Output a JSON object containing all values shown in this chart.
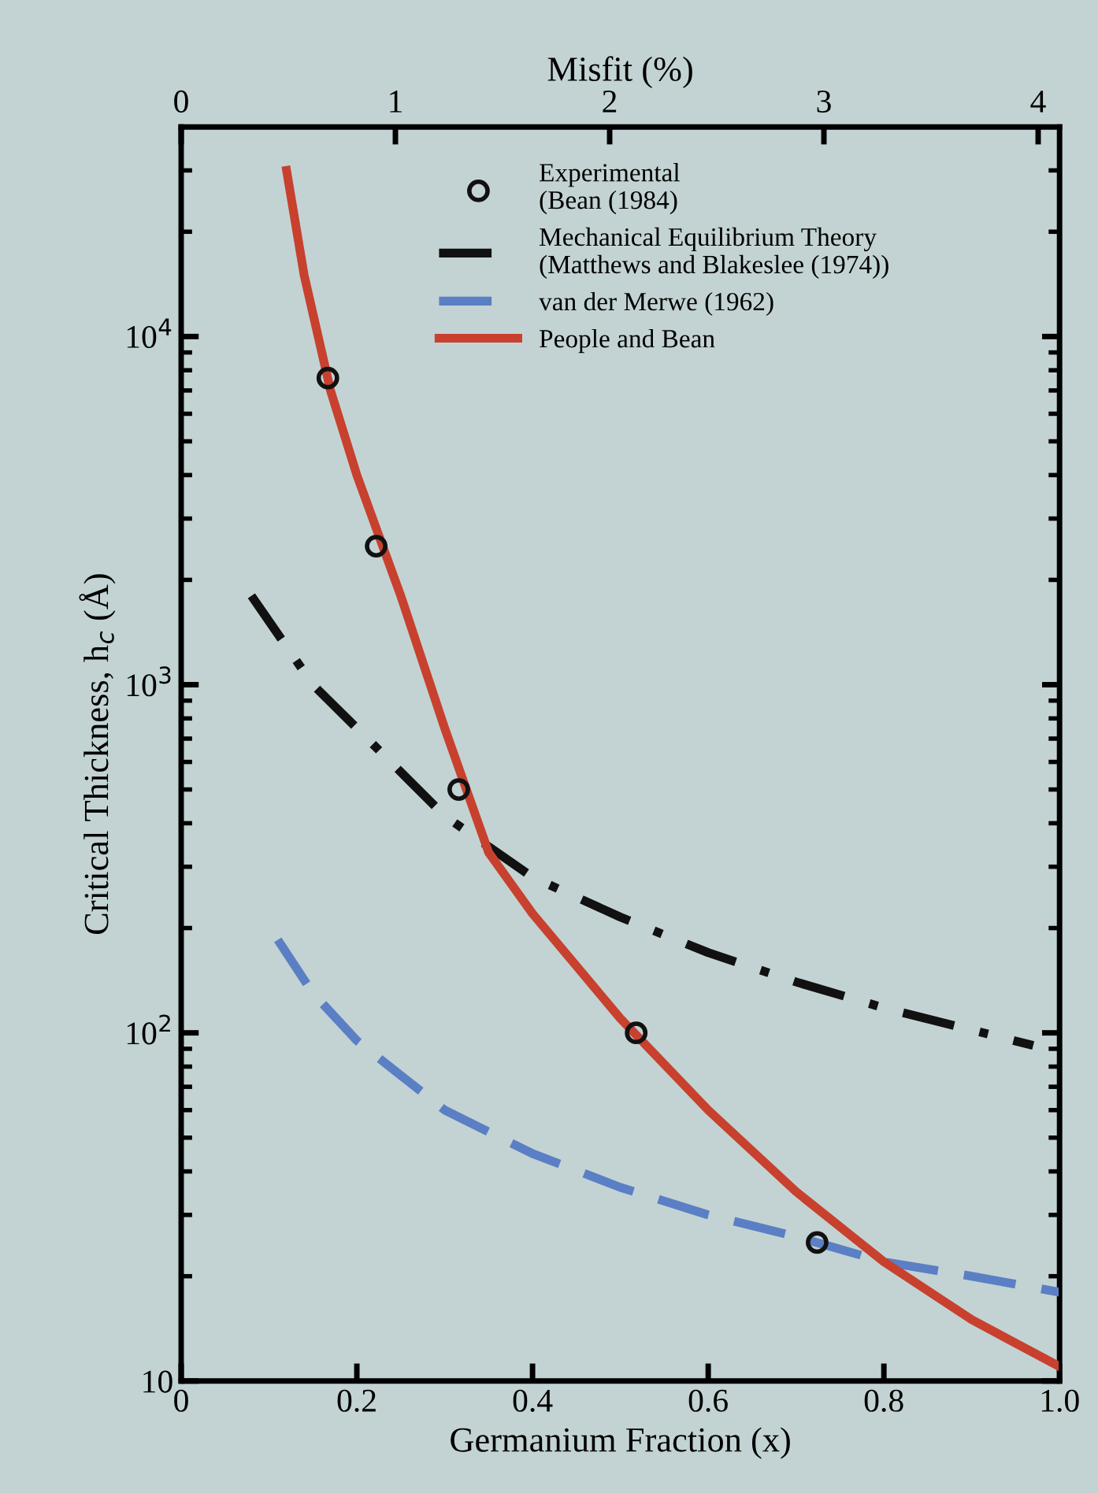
{
  "chart_data": {
    "type": "line",
    "xlabel": "Germanium Fraction (x)",
    "ylabel": "Critical Thickness, h$_{c}$ (Å)",
    "x2label": "Misfit (%)",
    "xlim": [
      0,
      1.0
    ],
    "xticks": [
      0,
      0.2,
      0.4,
      0.6,
      0.8,
      {
        "value": 1.0,
        "label": "1.0"
      }
    ],
    "x2lim": [
      0,
      4.1
    ],
    "x2ticks": [
      0,
      1,
      2,
      3,
      4
    ],
    "ylim": [
      10,
      40000
    ],
    "log": "y",
    "yticks": [
      10,
      {
        "value": 100,
        "label": "10$^{2}$"
      },
      {
        "value": 1000,
        "label": "10$^{3}$"
      },
      {
        "value": 10000,
        "label": "10$^{4}$"
      }
    ],
    "grid": false,
    "legend": "top",
    "series": [
      {
        "name": "Experimental\n(Bean (1984)",
        "type": "scatter",
        "marker": "circle",
        "color": "#111111",
        "x": [
          0.167,
          0.222,
          0.316,
          0.518,
          0.724
        ],
        "values": [
          7600,
          2500,
          500,
          100,
          25
        ]
      },
      {
        "name": "Mechanical Equilibrium Theory\n(Matthews and Blakeslee (1974))",
        "line_style": "dashdot",
        "color": "#111111",
        "x": [
          0.08,
          0.15,
          0.2,
          0.3,
          0.4,
          0.5,
          0.6,
          0.7,
          0.8,
          0.97
        ],
        "values": [
          1800,
          1000,
          750,
          420,
          280,
          215,
          170,
          140,
          118,
          92
        ]
      },
      {
        "name": "van der Merwe (1962)",
        "line_style": "dashed",
        "color": "#5b7fc4",
        "x": [
          0.11,
          0.15,
          0.2,
          0.3,
          0.4,
          0.5,
          0.6,
          0.7,
          0.8,
          0.9,
          1.0
        ],
        "values": [
          185,
          130,
          95,
          60,
          45,
          36,
          30,
          26,
          22,
          20,
          18
        ]
      },
      {
        "name": "People and Bean",
        "line_style": "solid",
        "color": "#c8412e",
        "x": [
          0.12,
          0.14,
          0.17,
          0.2,
          0.25,
          0.3,
          0.35,
          0.4,
          0.5,
          0.6,
          0.7,
          0.8,
          0.9,
          1.0
        ],
        "values": [
          30000,
          15000,
          7000,
          4000,
          1800,
          750,
          330,
          220,
          110,
          60,
          35,
          22,
          15,
          11
        ]
      }
    ]
  }
}
